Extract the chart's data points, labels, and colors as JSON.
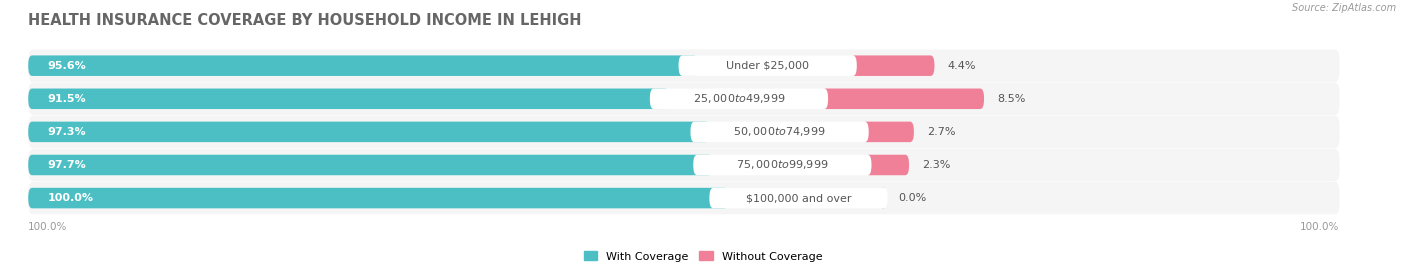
{
  "title": "HEALTH INSURANCE COVERAGE BY HOUSEHOLD INCOME IN LEHIGH",
  "source": "Source: ZipAtlas.com",
  "categories": [
    "Under $25,000",
    "$25,000 to $49,999",
    "$50,000 to $74,999",
    "$75,000 to $99,999",
    "$100,000 and over"
  ],
  "with_coverage": [
    95.6,
    91.5,
    97.3,
    97.7,
    100.0
  ],
  "without_coverage": [
    4.4,
    8.5,
    2.7,
    2.3,
    0.0
  ],
  "color_with": "#4BBFC4",
  "color_without": "#F08098",
  "bar_bg_color": "#EDEDED",
  "row_bg_color": "#F5F5F5",
  "legend_with": "With Coverage",
  "legend_without": "Without Coverage",
  "axis_label_left": "100.0%",
  "axis_label_right": "100.0%",
  "title_fontsize": 10.5,
  "bar_label_fontsize": 8,
  "cat_label_fontsize": 8,
  "source_fontsize": 7,
  "tick_fontsize": 7.5
}
